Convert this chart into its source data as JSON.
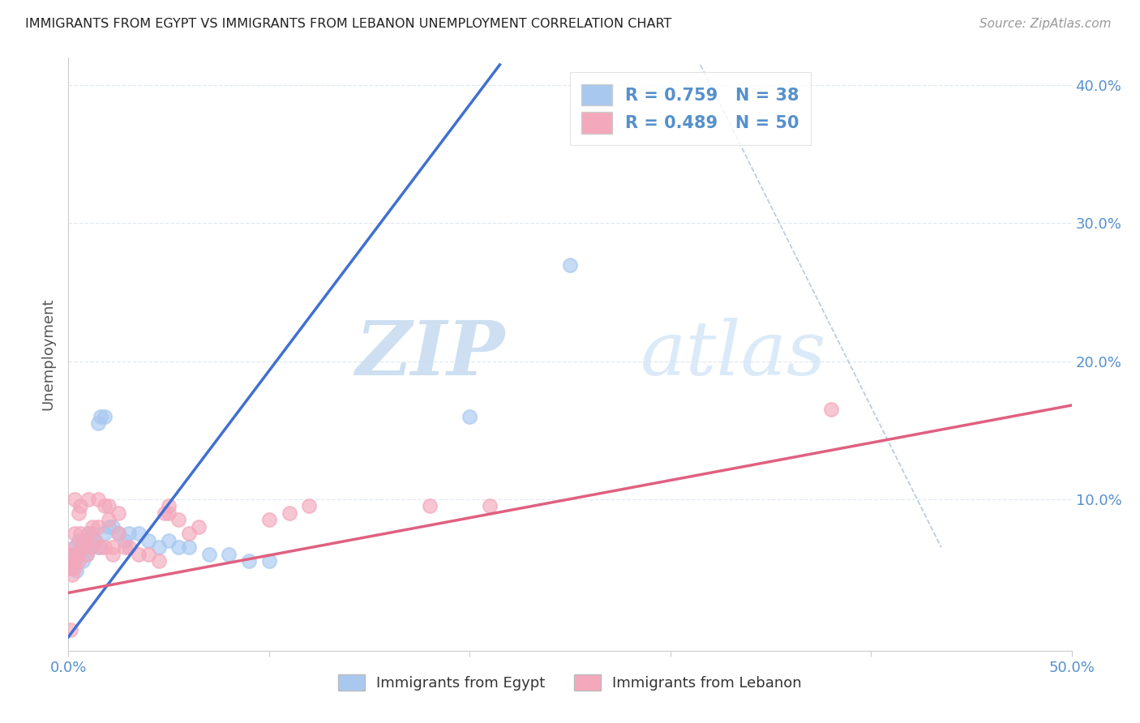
{
  "title": "IMMIGRANTS FROM EGYPT VS IMMIGRANTS FROM LEBANON UNEMPLOYMENT CORRELATION CHART",
  "source": "Source: ZipAtlas.com",
  "ylabel": "Unemployment",
  "xlim": [
    0.0,
    0.5
  ],
  "ylim": [
    -0.01,
    0.42
  ],
  "egypt_color": "#A8C8F0",
  "lebanon_color": "#F4A8BC",
  "egypt_line_color": "#4070D0",
  "lebanon_line_color": "#E06080",
  "diag_color": "#B0C4D8",
  "label_color": "#5590CC",
  "egypt_R": 0.759,
  "egypt_N": 38,
  "lebanon_R": 0.489,
  "lebanon_N": 50,
  "watermark_zip": "ZIP",
  "watermark_atlas": "atlas",
  "background_color": "#FFFFFF",
  "grid_color": "#E0E8F0",
  "spine_color": "#CCCCCC",
  "egypt_scatter_x": [
    0.001,
    0.002,
    0.002,
    0.003,
    0.003,
    0.004,
    0.005,
    0.005,
    0.006,
    0.007,
    0.008,
    0.009,
    0.01,
    0.011,
    0.012,
    0.013,
    0.015,
    0.016,
    0.018,
    0.02,
    0.022,
    0.025,
    0.028,
    0.03,
    0.035,
    0.04,
    0.045,
    0.05,
    0.055,
    0.06,
    0.07,
    0.08,
    0.09,
    0.1,
    0.015,
    0.018,
    0.2,
    0.25
  ],
  "egypt_scatter_y": [
    0.055,
    0.06,
    0.05,
    0.065,
    0.055,
    0.048,
    0.07,
    0.06,
    0.065,
    0.055,
    0.07,
    0.06,
    0.075,
    0.065,
    0.075,
    0.07,
    0.065,
    0.16,
    0.075,
    0.08,
    0.08,
    0.075,
    0.07,
    0.075,
    0.075,
    0.07,
    0.065,
    0.07,
    0.065,
    0.065,
    0.06,
    0.06,
    0.055,
    0.055,
    0.155,
    0.16,
    0.16,
    0.27
  ],
  "lebanon_scatter_x": [
    0.001,
    0.002,
    0.002,
    0.003,
    0.003,
    0.003,
    0.004,
    0.005,
    0.005,
    0.006,
    0.007,
    0.008,
    0.009,
    0.01,
    0.011,
    0.012,
    0.013,
    0.015,
    0.016,
    0.018,
    0.02,
    0.022,
    0.025,
    0.028,
    0.03,
    0.035,
    0.04,
    0.045,
    0.05,
    0.055,
    0.06,
    0.065,
    0.1,
    0.11,
    0.12,
    0.02,
    0.025,
    0.048,
    0.05,
    0.001,
    0.003,
    0.006,
    0.01,
    0.015,
    0.018,
    0.022,
    0.18,
    0.21,
    0.38,
    0.003
  ],
  "lebanon_scatter_y": [
    0.05,
    0.045,
    0.06,
    0.055,
    0.065,
    0.075,
    0.06,
    0.055,
    0.09,
    0.075,
    0.065,
    0.07,
    0.06,
    0.075,
    0.065,
    0.08,
    0.07,
    0.08,
    0.065,
    0.065,
    0.085,
    0.06,
    0.075,
    0.065,
    0.065,
    0.06,
    0.06,
    0.055,
    0.09,
    0.085,
    0.075,
    0.08,
    0.085,
    0.09,
    0.095,
    0.095,
    0.09,
    0.09,
    0.095,
    0.005,
    0.1,
    0.095,
    0.1,
    0.1,
    0.095,
    0.065,
    0.095,
    0.095,
    0.165,
    0.05
  ],
  "egypt_line_x": [
    0.0,
    0.215
  ],
  "egypt_line_y": [
    0.0,
    0.415
  ],
  "lebanon_line_x": [
    0.0,
    0.5
  ],
  "lebanon_line_y": [
    0.032,
    0.168
  ],
  "diag_line_x": [
    0.315,
    0.435
  ],
  "diag_line_y": [
    0.415,
    0.065
  ]
}
